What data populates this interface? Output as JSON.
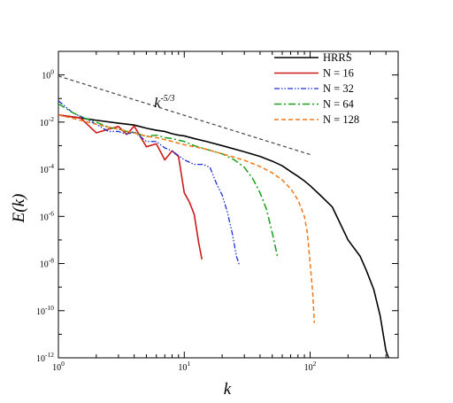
{
  "chart_data": {
    "type": "line",
    "title": "",
    "xlabel": "k",
    "ylabel_main": "E(",
    "ylabel_var": "k",
    "ylabel_end": ")",
    "xscale": "log",
    "yscale": "log",
    "xlim": [
      1,
      500
    ],
    "ylim": [
      1e-12,
      10
    ],
    "grid": false,
    "legend_position": "top-right",
    "x_ticks": [
      {
        "value": 1,
        "base": "10",
        "exp": "0"
      },
      {
        "value": 10,
        "base": "10",
        "exp": "1"
      },
      {
        "value": 100,
        "base": "10",
        "exp": "2"
      }
    ],
    "y_ticks": [
      {
        "value": 1,
        "base": "10",
        "exp": "0"
      },
      {
        "value": 0.01,
        "base": "10",
        "exp": "-2"
      },
      {
        "value": 0.0001,
        "base": "10",
        "exp": "-4"
      },
      {
        "value": 1e-06,
        "base": "10",
        "exp": "-6"
      },
      {
        "value": 1e-08,
        "base": "10",
        "exp": "-8"
      },
      {
        "value": 1e-10,
        "base": "10",
        "exp": "-10"
      },
      {
        "value": 1e-12,
        "base": "10",
        "exp": "-12"
      }
    ],
    "annotation": {
      "base": "k",
      "exp": "-5/3",
      "at_x": 7,
      "at_y": 0.06
    },
    "series": [
      {
        "name": "HRRS",
        "color": "#000000",
        "dash": "",
        "width": 1.6,
        "x": [
          1,
          1.5,
          2,
          3,
          4,
          5,
          6,
          7,
          8,
          9,
          10,
          12,
          15,
          20,
          30,
          40,
          50,
          60,
          70,
          80,
          90,
          100,
          120,
          150,
          200,
          250,
          280,
          320,
          360,
          400,
          420,
          430
        ],
        "y": [
          0.02,
          0.015,
          0.012,
          0.009,
          0.0075,
          0.0055,
          0.0045,
          0.004,
          0.0032,
          0.0028,
          0.0026,
          0.002,
          0.0015,
          0.001,
          0.00055,
          0.00035,
          0.00022,
          0.00014,
          8e-05,
          5e-05,
          3.2e-05,
          2e-05,
          8e-06,
          2.5e-06,
          1e-07,
          2e-08,
          5e-09,
          8e-10,
          6e-11,
          2e-12,
          1e-12,
          6e-13
        ]
      },
      {
        "name": "N = 16",
        "color": "#cc1a1a",
        "dash": "",
        "width": 1.6,
        "x": [
          1,
          1.5,
          2,
          2.5,
          3,
          3.5,
          4,
          5,
          6,
          7,
          8,
          9,
          10,
          11,
          12,
          13,
          13.8
        ],
        "y": [
          0.02,
          0.015,
          0.0035,
          0.005,
          0.0065,
          0.003,
          0.0068,
          0.0009,
          0.0012,
          0.00025,
          0.0006,
          0.00035,
          1e-05,
          4e-06,
          1.2e-06,
          8e-08,
          1.5e-08
        ]
      },
      {
        "name": "N = 32",
        "color": "#1f2fd6",
        "dash": "6 2 1.5 2 1.5 2",
        "width": 1.3,
        "x": [
          1,
          1.3,
          1.6,
          2,
          2.5,
          3,
          3.5,
          4,
          5,
          6,
          7,
          8,
          10,
          12,
          14,
          16,
          18,
          20,
          22,
          24,
          26,
          27.5
        ],
        "y": [
          0.08,
          0.025,
          0.015,
          0.008,
          0.004,
          0.004,
          0.003,
          0.004,
          0.0015,
          0.0015,
          0.0008,
          0.0006,
          0.00025,
          0.00016,
          0.00016,
          0.00012,
          2.5e-05,
          8e-06,
          1.5e-06,
          2e-07,
          2e-08,
          8e-09
        ]
      },
      {
        "name": "N = 64",
        "color": "#18a018",
        "dash": "8 3 2 3",
        "width": 1.5,
        "x": [
          1,
          1.3,
          1.6,
          2,
          2.5,
          3,
          3.5,
          4,
          5,
          6,
          7,
          8,
          10,
          12,
          15,
          20,
          25,
          30,
          35,
          40,
          45,
          50,
          55
        ],
        "y": [
          0.06,
          0.025,
          0.015,
          0.01,
          0.006,
          0.005,
          0.004,
          0.0035,
          0.0025,
          0.0028,
          0.0022,
          0.002,
          0.0015,
          0.001,
          0.0007,
          0.00045,
          0.00025,
          0.00012,
          4e-05,
          1e-05,
          2e-06,
          2e-07,
          2e-08
        ]
      },
      {
        "name": "N = 128",
        "color": "#f07818",
        "dash": "5 3",
        "width": 1.5,
        "x": [
          1,
          1.5,
          2,
          3,
          4,
          5,
          6,
          7,
          8,
          10,
          12,
          15,
          20,
          25,
          30,
          40,
          50,
          60,
          70,
          80,
          90,
          95,
          100,
          105,
          108
        ],
        "y": [
          0.02,
          0.012,
          0.008,
          0.005,
          0.0035,
          0.0025,
          0.0022,
          0.0018,
          0.0015,
          0.0011,
          0.0009,
          0.0007,
          0.00045,
          0.00032,
          0.00024,
          0.00013,
          7e-05,
          3.5e-05,
          1.5e-05,
          5e-06,
          1e-06,
          2e-07,
          1e-08,
          5e-10,
          3e-11
        ]
      },
      {
        "name": "",
        "color": "#444444",
        "dash": "4 3",
        "width": 1.2,
        "x": [
          1,
          100
        ],
        "y": [
          0.9,
          0.00042
        ]
      }
    ]
  }
}
